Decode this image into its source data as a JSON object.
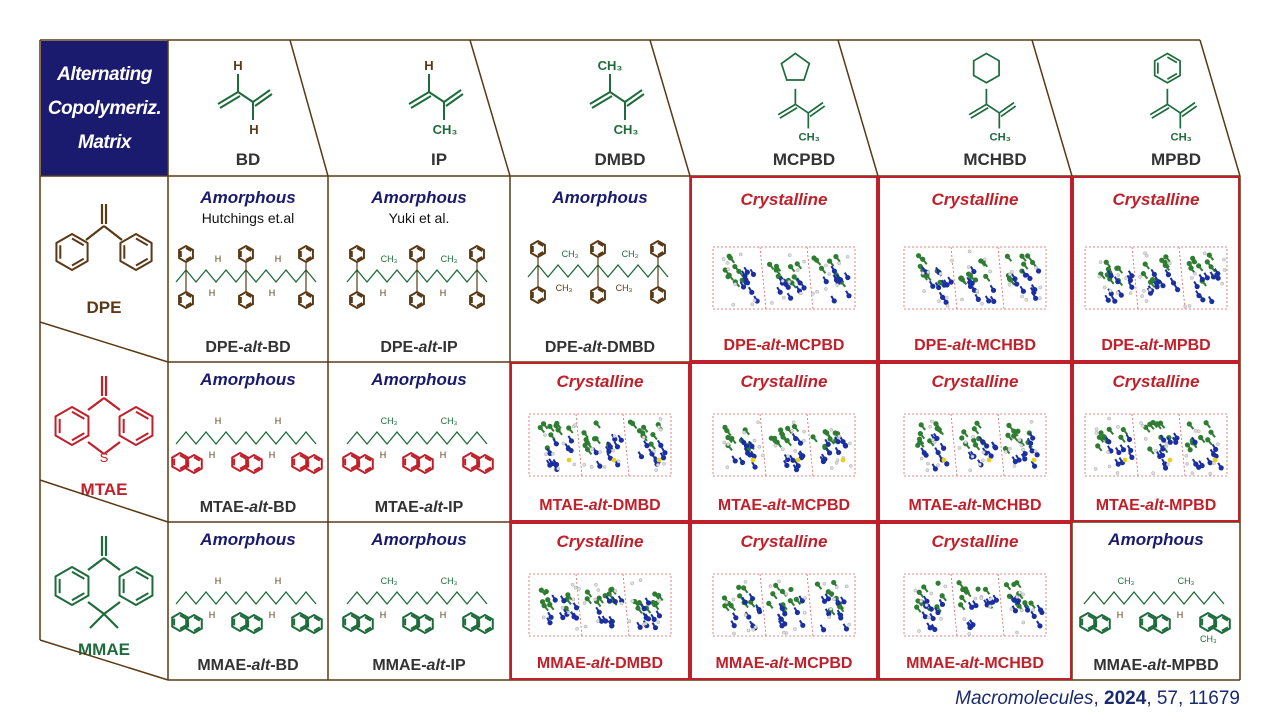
{
  "corner_title": [
    "Alternating",
    "Copolymeriz.",
    "Matrix"
  ],
  "colors": {
    "brown": "#5a3a16",
    "green": "#1e6b3c",
    "red": "#c0202a",
    "navy": "#1a1a6e",
    "amorphous_label": "#1a1a6e",
    "crystalline_label": "#c0202a"
  },
  "columns": [
    {
      "name": "BD",
      "icon": "butadiene-structure"
    },
    {
      "name": "IP",
      "icon": "isoprene-structure"
    },
    {
      "name": "DMBD",
      "icon": "dimethylbutadiene-structure"
    },
    {
      "name": "MCPBD",
      "icon": "cyclopentyl-methylbutadiene-structure"
    },
    {
      "name": "MCHBD",
      "icon": "cyclohexyl-methylbutadiene-structure"
    },
    {
      "name": "MPBD",
      "icon": "phenyl-methylbutadiene-structure"
    }
  ],
  "rows": [
    {
      "name": "DPE",
      "icon": "diphenylethylene-structure",
      "color": "#5a3a16"
    },
    {
      "name": "MTAE",
      "icon": "methylene-thioxanthene-structure",
      "color": "#c0202a"
    },
    {
      "name": "MMAE",
      "icon": "methylene-dimethylanthracene-structure",
      "color": "#1e6b3c"
    }
  ],
  "cells": [
    [
      {
        "state": "Amorphous",
        "citation": "Hutchings et.al",
        "prefix": "DPE-",
        "alt": "alt",
        "suffix": "-BD",
        "crystalline": false
      },
      {
        "state": "Amorphous",
        "citation": "Yuki et al.",
        "prefix": "DPE-",
        "alt": "alt",
        "suffix": "-IP",
        "crystalline": false
      },
      {
        "state": "Amorphous",
        "prefix": "DPE-",
        "alt": "alt",
        "suffix": "-DMBD",
        "crystalline": false
      },
      {
        "state": "Crystalline",
        "prefix": "DPE-",
        "alt": "alt",
        "suffix": "-MCPBD",
        "crystalline": true
      },
      {
        "state": "Crystalline",
        "prefix": "DPE-",
        "alt": "alt",
        "suffix": "-MCHBD",
        "crystalline": true
      },
      {
        "state": "Crystalline",
        "prefix": "DPE-",
        "alt": "alt",
        "suffix": "-MPBD",
        "crystalline": true
      }
    ],
    [
      {
        "state": "Amorphous",
        "prefix": "MTAE-",
        "alt": "alt",
        "suffix": "-BD",
        "crystalline": false
      },
      {
        "state": "Amorphous",
        "prefix": "MTAE-",
        "alt": "alt",
        "suffix": "-IP",
        "crystalline": false
      },
      {
        "state": "Crystalline",
        "prefix": "MTAE-",
        "alt": "alt",
        "suffix": "-DMBD",
        "crystalline": true
      },
      {
        "state": "Crystalline",
        "prefix": "MTAE-",
        "alt": "alt",
        "suffix": "-MCPBD",
        "crystalline": true
      },
      {
        "state": "Crystalline",
        "prefix": "MTAE-",
        "alt": "alt",
        "suffix": "-MCHBD",
        "crystalline": true
      },
      {
        "state": "Crystalline",
        "prefix": "MTAE-",
        "alt": "alt",
        "suffix": "-MPBD",
        "crystalline": true
      }
    ],
    [
      {
        "state": "Amorphous",
        "prefix": "MMAE-",
        "alt": "alt",
        "suffix": "-BD",
        "crystalline": false
      },
      {
        "state": "Amorphous",
        "prefix": "MMAE-",
        "alt": "alt",
        "suffix": "-IP",
        "crystalline": false
      },
      {
        "state": "Crystalline",
        "prefix": "MMAE-",
        "alt": "alt",
        "suffix": "-DMBD",
        "crystalline": true
      },
      {
        "state": "Crystalline",
        "prefix": "MMAE-",
        "alt": "alt",
        "suffix": "-MCPBD",
        "crystalline": true
      },
      {
        "state": "Crystalline",
        "prefix": "MMAE-",
        "alt": "alt",
        "suffix": "-MCHBD",
        "crystalline": true
      },
      {
        "state": "Amorphous",
        "prefix": "MMAE-",
        "alt": "alt",
        "suffix": "-MPBD",
        "crystalline": false
      }
    ]
  ],
  "footer": {
    "journal": "Macromolecules",
    "sep1": ", ",
    "year": "2024",
    "rest": ", 57, 11679"
  }
}
